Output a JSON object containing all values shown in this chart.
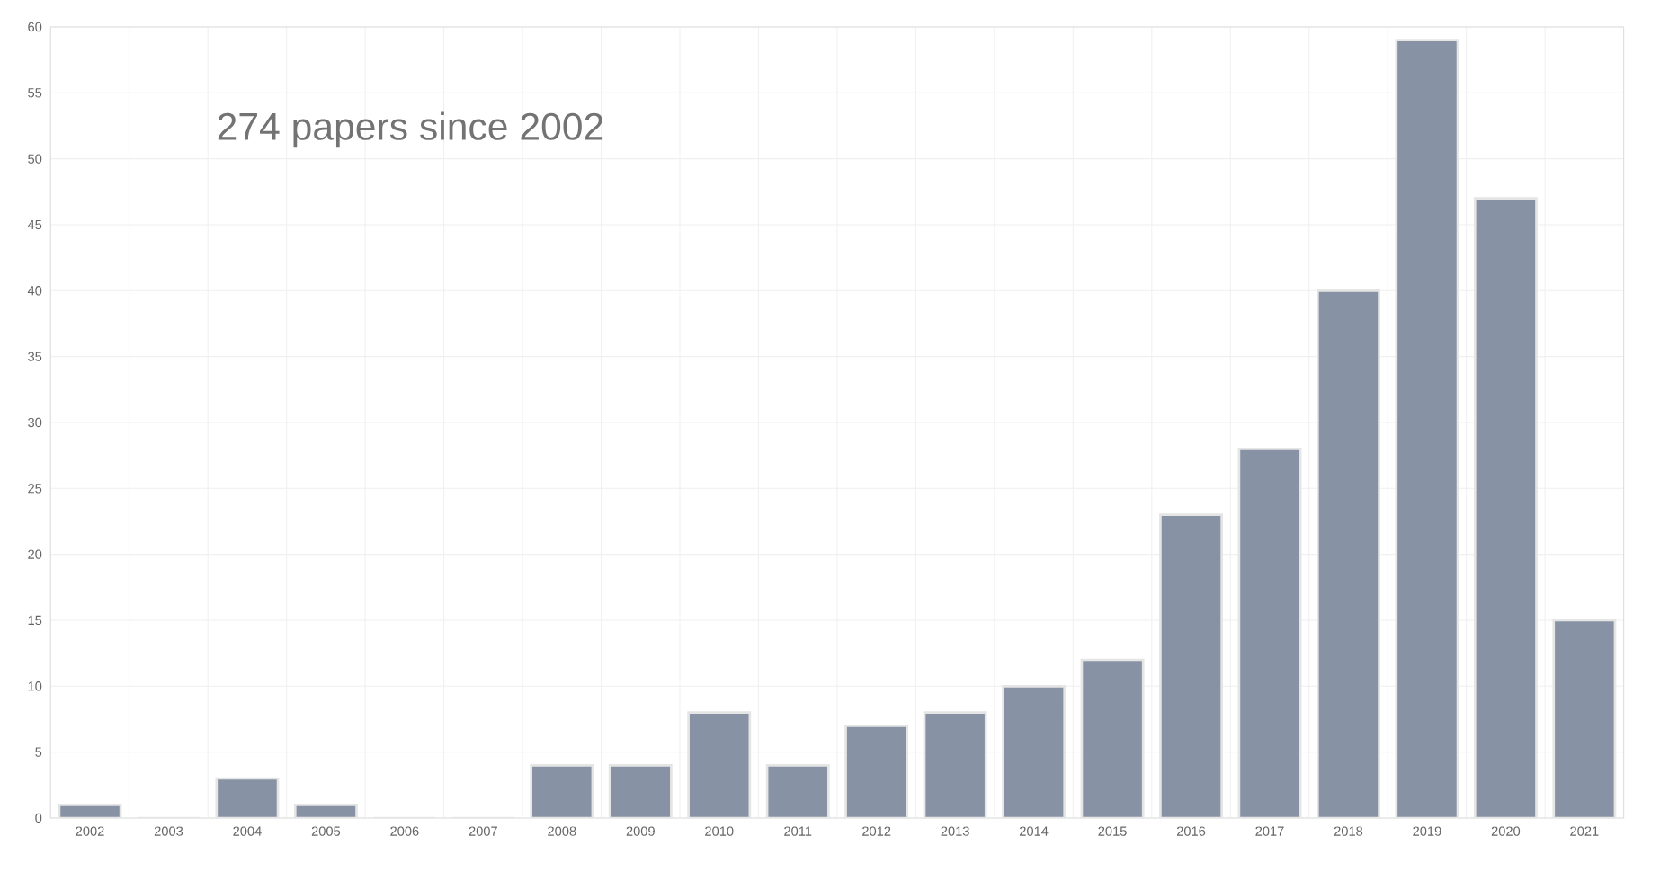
{
  "chart_data": {
    "type": "bar",
    "categories": [
      "2002",
      "2003",
      "2004",
      "2005",
      "2006",
      "2007",
      "2008",
      "2009",
      "2010",
      "2011",
      "2012",
      "2013",
      "2014",
      "2015",
      "2016",
      "2017",
      "2018",
      "2019",
      "2020",
      "2021"
    ],
    "values": [
      1,
      0,
      3,
      1,
      0,
      0,
      4,
      4,
      8,
      4,
      7,
      8,
      10,
      12,
      23,
      28,
      40,
      59,
      47,
      15
    ],
    "color": "#8793a5",
    "ylim": [
      0,
      60
    ],
    "yticks": [
      0,
      5,
      10,
      15,
      20,
      25,
      30,
      35,
      40,
      45,
      50,
      55,
      60
    ],
    "grid": true,
    "annotations": [
      "274 papers since 2002"
    ]
  }
}
